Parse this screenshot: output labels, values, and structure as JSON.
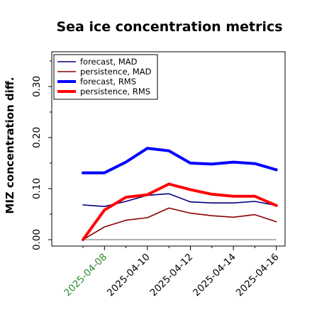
{
  "chart_data": {
    "type": "line",
    "title": "Sea ice concentration metrics",
    "ylabel": "MIZ concentration diff.",
    "xlabel": "",
    "ylim": [
      -0.01,
      0.365
    ],
    "yticks": [
      0.0,
      0.1,
      0.2,
      0.3
    ],
    "ytick_labels": [
      "0.00",
      "0.10",
      "0.20",
      "0.30"
    ],
    "x": [
      "2025-04-07",
      "2025-04-08",
      "2025-04-09",
      "2025-04-10",
      "2025-04-11",
      "2025-04-12",
      "2025-04-13",
      "2025-04-14",
      "2025-04-15",
      "2025-04-16"
    ],
    "xticks": [
      "2025-04-08",
      "2025-04-10",
      "2025-04-12",
      "2025-04-14",
      "2025-04-16"
    ],
    "xtick_colors": [
      "#2e8b2e",
      "#000000",
      "#000000",
      "#000000",
      "#000000"
    ],
    "legend_position": "upper-left",
    "grid": false,
    "series": [
      {
        "name": "forecast,  MAD",
        "color": "#00007f",
        "width": 1.6,
        "values": [
          0.068,
          0.065,
          0.075,
          0.087,
          0.09,
          0.074,
          0.072,
          0.072,
          0.075,
          0.067
        ]
      },
      {
        "name": "persistence, MAD",
        "color": "#8b0000",
        "width": 1.6,
        "values": [
          0.0,
          0.025,
          0.038,
          0.043,
          0.062,
          0.052,
          0.047,
          0.044,
          0.049,
          0.035
        ]
      },
      {
        "name": "forecast,  RMS",
        "color": "#0000ff",
        "width": 4,
        "values": [
          0.131,
          0.131,
          0.152,
          0.179,
          0.174,
          0.15,
          0.148,
          0.152,
          0.149,
          0.137
        ]
      },
      {
        "name": "persistence, RMS",
        "color": "#ff0000",
        "width": 4,
        "values": [
          0.0,
          0.058,
          0.083,
          0.088,
          0.109,
          0.098,
          0.089,
          0.085,
          0.085,
          0.067
        ]
      }
    ],
    "baseline": {
      "value": 0.0,
      "color": "#808080",
      "from_index": 0,
      "to_index": 9
    }
  }
}
